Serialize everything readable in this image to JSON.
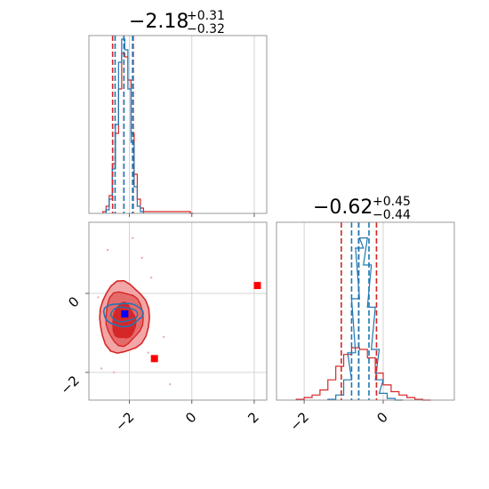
{
  "colors": {
    "red": "#d62728",
    "blue": "#1f77b4",
    "marker_blue": "#0000ff",
    "marker_red": "#ff0000",
    "contour_fill_dark": "#d62728",
    "contour_fill_light": "#f2a6a6",
    "frame": "#808080",
    "grid": "#c8c8c8"
  },
  "chart_data": {
    "type": "corner",
    "parameters": [
      {
        "title": {
          "median": "−2.18",
          "upper": "+0.31",
          "lower": "−0.32"
        },
        "range": [
          -3.3,
          2.4
        ],
        "ticks": [
          -2,
          0,
          2
        ],
        "tick_labels": [
          "−2",
          "0",
          "2"
        ],
        "quantiles": {
          "red": [
            -2.54,
            -2.18,
            -1.88
          ],
          "blue": [
            -2.46,
            -2.18,
            -1.9
          ]
        }
      },
      {
        "title": {
          "median": "−0.62",
          "upper": "+0.45",
          "lower": "−0.44"
        },
        "range": [
          -2.7,
          1.8
        ],
        "ticks": [
          -2,
          0
        ],
        "tick_labels": [
          "−2",
          "0"
        ],
        "quantiles": {
          "red": [
            -1.06,
            -0.62,
            -0.17
          ],
          "blue": [
            -0.8,
            -0.62,
            -0.36
          ]
        }
      }
    ],
    "hist_param1": {
      "red": {
        "x": [
          -2.8,
          -2.7,
          -2.6,
          -2.5,
          -2.4,
          -2.3,
          -2.2,
          -2.1,
          -2.0,
          -1.9,
          -1.8,
          -1.7,
          -1.6,
          -1.5,
          -0.1,
          0.0
        ],
        "y": [
          1,
          4,
          10,
          28,
          45,
          70,
          90,
          88,
          75,
          45,
          22,
          8,
          3,
          1,
          1,
          0
        ]
      },
      "blue": {
        "x": [
          -2.7,
          -2.6,
          -2.5,
          -2.4,
          -2.3,
          -2.2,
          -2.1,
          -2.0,
          -1.9,
          -1.8,
          -1.7,
          -1.6
        ],
        "y": [
          2,
          8,
          25,
          50,
          85,
          98,
          92,
          70,
          40,
          15,
          4,
          1
        ]
      }
    },
    "hist_param2": {
      "red": {
        "x": [
          -2.1,
          -1.9,
          -1.7,
          -1.5,
          -1.3,
          -1.1,
          -0.9,
          -0.7,
          -0.5,
          -0.3,
          -0.1,
          0.1,
          0.3,
          0.5,
          0.7,
          0.9,
          1.1
        ],
        "y": [
          0.5,
          1.5,
          3,
          6,
          12,
          20,
          27,
          31,
          30,
          25,
          16,
          9,
          5,
          3,
          1.5,
          0.5,
          0
        ]
      },
      "blue": {
        "x": [
          -1.3,
          -1.1,
          -0.9,
          -0.8,
          -0.7,
          -0.6,
          -0.5,
          -0.4,
          -0.3,
          -0.2,
          -0.1,
          0.0,
          0.2,
          0.4
        ],
        "y": [
          0.5,
          3,
          12,
          28,
          60,
          90,
          96,
          80,
          55,
          30,
          12,
          4,
          1,
          0
        ]
      }
    },
    "joint": {
      "blue_marker": [
        -2.15,
        -0.52
      ],
      "red_markers": [
        [
          -1.2,
          -1.65
        ],
        [
          2.1,
          0.2
        ]
      ],
      "scatter_points": [
        [
          -2.9,
          -1.9
        ],
        [
          -1.6,
          0.9
        ],
        [
          -2.7,
          1.1
        ],
        [
          -1.4,
          -1.5
        ],
        [
          -0.7,
          -2.3
        ],
        [
          -3.0,
          -0.1
        ],
        [
          -1.9,
          1.4
        ],
        [
          -2.5,
          -2.0
        ],
        [
          -1.3,
          0.4
        ],
        [
          -0.9,
          -1.1
        ]
      ]
    }
  }
}
